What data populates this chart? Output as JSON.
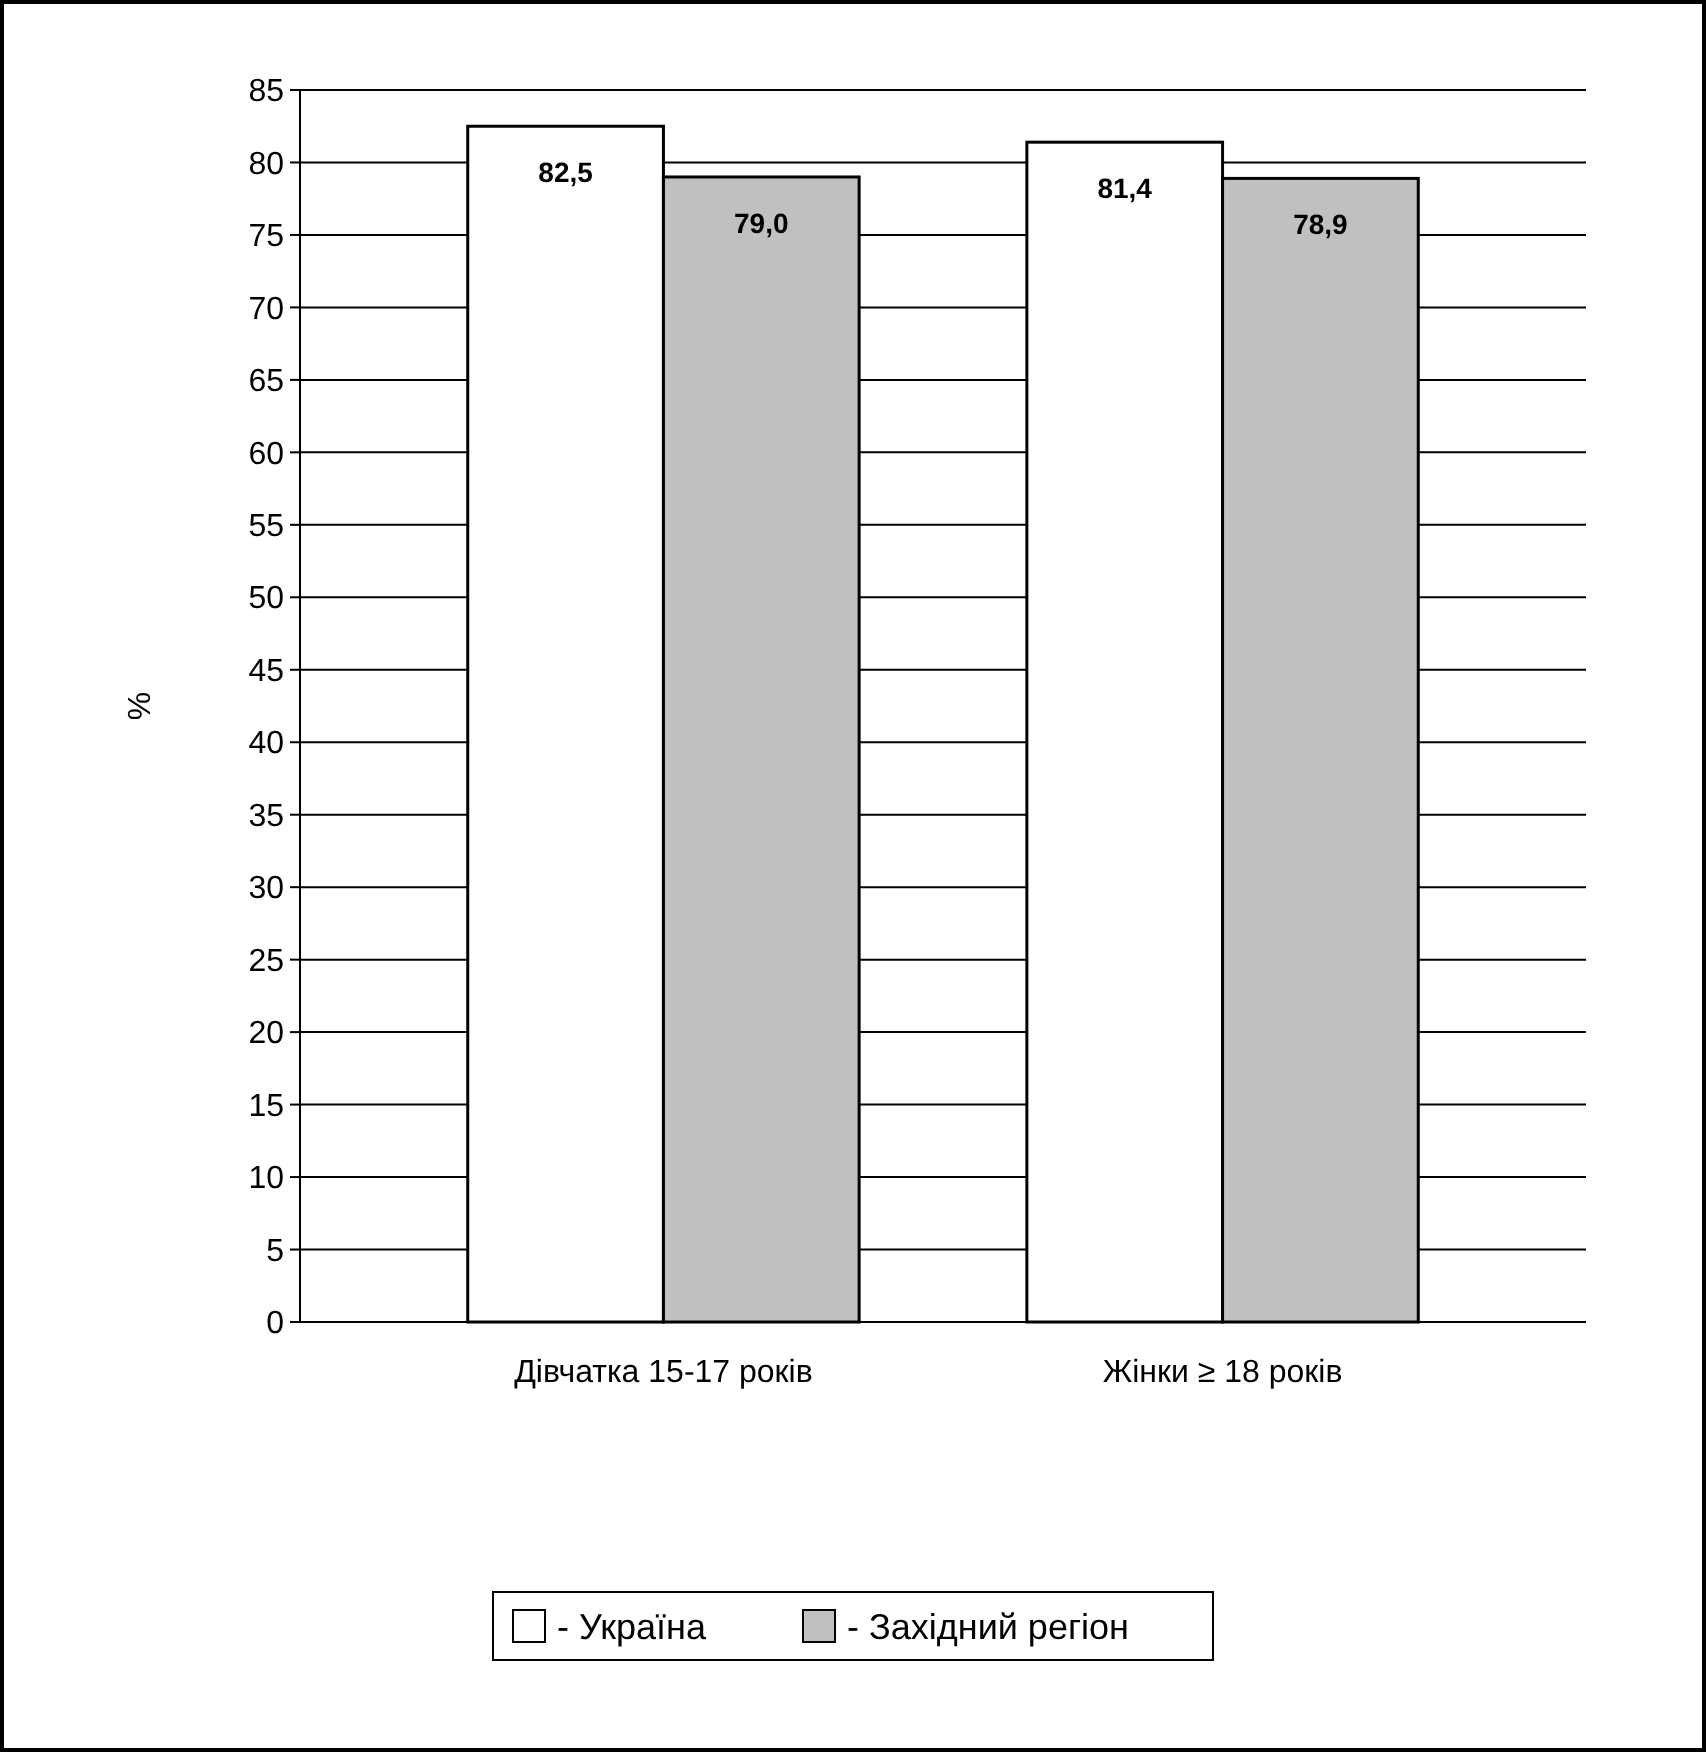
{
  "chart_data": {
    "type": "bar",
    "ylabel": "%",
    "categories": [
      "Дівчатка 15-17 років",
      "Жінки ≥ 18 років"
    ],
    "series": [
      {
        "name": "- Україна",
        "color": "#ffffff",
        "values": [
          82.5,
          81.4
        ],
        "value_labels": [
          "82,5",
          "81,4"
        ]
      },
      {
        "name": "- Західний регіон",
        "color": "#c0c0c0",
        "values": [
          79.0,
          78.9
        ],
        "value_labels": [
          "79,0",
          "78,9"
        ]
      }
    ],
    "ylim": [
      0,
      85
    ],
    "yticks": [
      0,
      5,
      10,
      15,
      20,
      25,
      30,
      35,
      40,
      45,
      50,
      55,
      60,
      65,
      70,
      75,
      80,
      85
    ],
    "grid": "y",
    "legend": "bottom"
  }
}
